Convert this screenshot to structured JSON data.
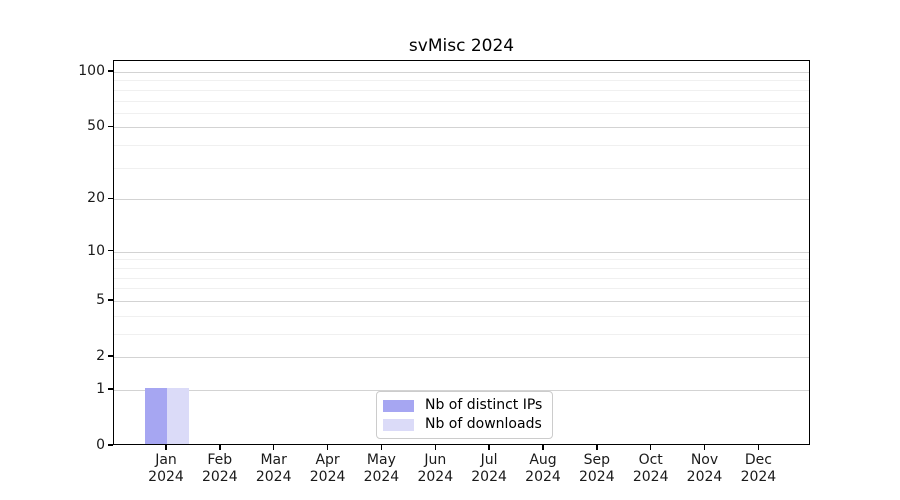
{
  "title": "svMisc 2024",
  "chart_data": {
    "type": "bar",
    "title": "svMisc 2024",
    "categories": [
      "Jan",
      "Feb",
      "Mar",
      "Apr",
      "May",
      "Jun",
      "Jul",
      "Aug",
      "Sep",
      "Oct",
      "Nov",
      "Dec"
    ],
    "category_year": "2024",
    "series": [
      {
        "name": "Nb of distinct IPs",
        "color": "#a6a6f2",
        "values": [
          1,
          0,
          0,
          0,
          0,
          0,
          0,
          0,
          0,
          0,
          0,
          0
        ]
      },
      {
        "name": "Nb of downloads",
        "color": "#dbdbf8",
        "values": [
          1,
          0,
          0,
          0,
          0,
          0,
          0,
          0,
          0,
          0,
          0,
          0
        ]
      }
    ],
    "y_axis": {
      "scale": "log1p",
      "ylim": [
        0,
        100
      ],
      "tick_values": [
        0,
        1,
        2,
        5,
        10,
        20,
        50,
        100
      ],
      "minor_gridline_values": [
        3,
        4,
        6,
        7,
        8,
        9,
        30,
        40,
        60,
        70,
        80,
        90
      ]
    },
    "x_axis": {
      "label_format": "month over year"
    },
    "grid": "horizontal",
    "legend": {
      "position": "bottom-center",
      "entries": [
        "Nb of distinct IPs",
        "Nb of downloads"
      ]
    },
    "colors": {
      "bar_distinct_ips": "#a6a6f2",
      "bar_downloads": "#dbdbf8",
      "major_grid": "#d3d3d3",
      "minor_grid": "#f0f0f0",
      "spine": "#000000"
    }
  }
}
